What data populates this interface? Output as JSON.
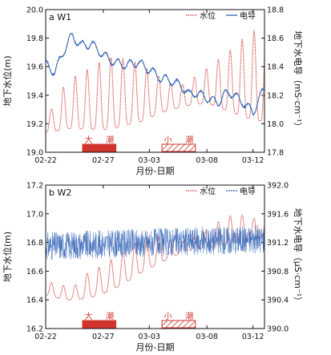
{
  "chart_data": [
    {
      "type": "line",
      "panel_label": "a W1",
      "xlabel": "月份-日期",
      "ylabel_left": "地下水位(m)",
      "ylabel_right": "地下水电导（mS·cm⁻¹）",
      "x_ticks": [
        "02-22",
        "02-27",
        "03-03",
        "03-08",
        "03-12"
      ],
      "x_range_days": [
        0,
        19
      ],
      "ylim_left": [
        19.0,
        20.0
      ],
      "yticks_left": [
        "19.0",
        "19.2",
        "19.4",
        "19.6",
        "19.8",
        "20.0"
      ],
      "ylim_right": [
        17.8,
        18.8
      ],
      "yticks_right": [
        "17.8",
        "18.0",
        "18.2",
        "18.4",
        "18.6",
        "18.8"
      ],
      "legend_position": "top-right",
      "series": [
        {
          "name": "水位",
          "axis": "left",
          "color": "#d0342c",
          "style": "dotted",
          "x": [
            0.5,
            1.5,
            2.5,
            3.5,
            4.5,
            5.5,
            6.5,
            7.5,
            8.5,
            9.5,
            10.5,
            11.5,
            12.5,
            13.5,
            14.5,
            15.5,
            16.5,
            17.5,
            18.5
          ],
          "trough": [
            19.14,
            19.16,
            19.17,
            19.16,
            19.16,
            19.16,
            19.18,
            19.2,
            19.22,
            19.26,
            19.29,
            19.31,
            19.33,
            19.34,
            19.33,
            19.3,
            19.27,
            19.24,
            19.22
          ],
          "peak": [
            19.3,
            19.45,
            19.53,
            19.57,
            19.62,
            19.66,
            19.66,
            19.64,
            19.6,
            19.55,
            19.5,
            19.46,
            19.5,
            19.56,
            19.62,
            19.68,
            19.75,
            19.82,
            19.87
          ]
        },
        {
          "name": "电导",
          "axis": "right",
          "color": "#2f62b5",
          "style": "solid",
          "x": [
            0,
            0.8,
            1.5,
            2.3,
            3.0,
            4.0,
            5.0,
            6.0,
            7.0,
            8.0,
            9.0,
            10.0,
            11.0,
            12.0,
            12.5,
            13.0,
            14.0,
            15.0,
            15.5,
            16.0,
            17.0,
            18.0,
            19.0
          ],
          "values": [
            18.42,
            18.36,
            18.5,
            18.62,
            18.55,
            18.56,
            18.48,
            18.43,
            18.41,
            18.43,
            18.38,
            18.32,
            18.3,
            18.25,
            18.2,
            18.22,
            18.18,
            18.15,
            18.2,
            18.22,
            18.16,
            18.08,
            18.25
          ]
        }
      ],
      "annotations": [
        {
          "label": "大潮",
          "x_start": 3.2,
          "x_end": 6.1,
          "fill": "solid",
          "color": "#d0342c"
        },
        {
          "label": "小潮",
          "x_start": 10.1,
          "x_end": 13.0,
          "fill": "hatched",
          "color": "#d0342c"
        }
      ]
    },
    {
      "type": "line",
      "panel_label": "b W2",
      "xlabel": "月份-日期",
      "ylabel_left": "地下水位(m)",
      "ylabel_right": "地下水电导（μS·cm⁻¹）",
      "x_ticks": [
        "02-22",
        "02-27",
        "03-03",
        "03-08",
        "03-12"
      ],
      "x_range_days": [
        0,
        19
      ],
      "ylim_left": [
        16.2,
        17.2
      ],
      "yticks_left": [
        "16.2",
        "16.4",
        "16.6",
        "16.8",
        "17.0",
        "17.2"
      ],
      "ylim_right": [
        390.0,
        392.0
      ],
      "yticks_right": [
        "390.0",
        "390.4",
        "390.8",
        "391.2",
        "391.6",
        "392.0"
      ],
      "legend_position": "top-right",
      "series": [
        {
          "name": "水位",
          "axis": "left",
          "color": "#d0342c",
          "style": "dotted",
          "x": [
            0.5,
            1.5,
            2.5,
            3.5,
            4.5,
            5.5,
            6.5,
            7.5,
            8.5,
            9.5,
            10.5,
            11.5,
            12.5,
            13.5,
            14.5,
            15.5,
            16.5,
            17.5,
            18.5
          ],
          "trough": [
            16.43,
            16.4,
            16.4,
            16.41,
            16.43,
            16.46,
            16.5,
            16.55,
            16.6,
            16.64,
            16.68,
            16.72,
            16.75,
            16.76,
            16.77,
            16.78,
            16.8,
            16.82,
            16.83
          ],
          "peak": [
            16.52,
            16.5,
            16.5,
            16.58,
            16.62,
            16.67,
            16.72,
            16.78,
            16.83,
            16.85,
            16.83,
            16.8,
            16.82,
            16.86,
            16.92,
            16.97,
            17.0,
            16.98,
            16.96
          ]
        },
        {
          "name": "电导",
          "axis": "right",
          "color": "#2f62b5",
          "style": "noisy-band",
          "x": [
            0,
            19
          ],
          "baseline": [
            391.15,
            391.25
          ],
          "noise_amplitude": 0.2
        }
      ],
      "annotations": [
        {
          "label": "大潮",
          "x_start": 3.2,
          "x_end": 6.1,
          "fill": "solid",
          "color": "#d0342c"
        },
        {
          "label": "小潮",
          "x_start": 10.1,
          "x_end": 13.0,
          "fill": "hatched",
          "color": "#d0342c"
        }
      ]
    }
  ]
}
